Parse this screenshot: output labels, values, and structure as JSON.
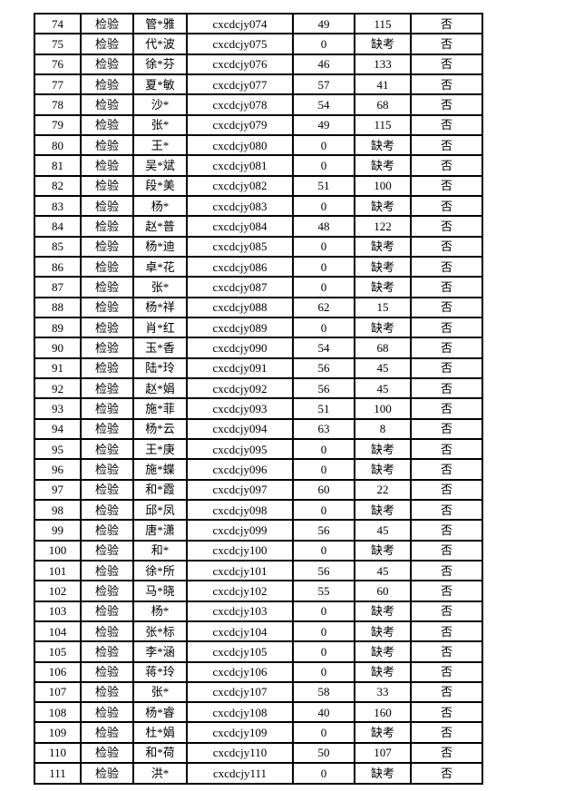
{
  "page": {
    "background_color": "#ffffff",
    "text_color": "#000000",
    "border_color": "#000000"
  },
  "table": {
    "column_keys": [
      "row_number",
      "category",
      "name",
      "account",
      "score",
      "rank_or_status",
      "flag"
    ],
    "absent_label": "缺考",
    "rows": [
      [
        "74",
        "检验",
        "管*雅",
        "cxcdcjy074",
        "49",
        "115",
        "否"
      ],
      [
        "75",
        "检验",
        "代*波",
        "cxcdcjy075",
        "0",
        "缺考",
        "否"
      ],
      [
        "76",
        "检验",
        "徐*芬",
        "cxcdcjy076",
        "46",
        "133",
        "否"
      ],
      [
        "77",
        "检验",
        "夏*敏",
        "cxcdcjy077",
        "57",
        "41",
        "否"
      ],
      [
        "78",
        "检验",
        "沙*",
        "cxcdcjy078",
        "54",
        "68",
        "否"
      ],
      [
        "79",
        "检验",
        "张*",
        "cxcdcjy079",
        "49",
        "115",
        "否"
      ],
      [
        "80",
        "检验",
        "王*",
        "cxcdcjy080",
        "0",
        "缺考",
        "否"
      ],
      [
        "81",
        "检验",
        "吴*斌",
        "cxcdcjy081",
        "0",
        "缺考",
        "否"
      ],
      [
        "82",
        "检验",
        "段*美",
        "cxcdcjy082",
        "51",
        "100",
        "否"
      ],
      [
        "83",
        "检验",
        "杨*",
        "cxcdcjy083",
        "0",
        "缺考",
        "否"
      ],
      [
        "84",
        "检验",
        "赵*普",
        "cxcdcjy084",
        "48",
        "122",
        "否"
      ],
      [
        "85",
        "检验",
        "杨*迪",
        "cxcdcjy085",
        "0",
        "缺考",
        "否"
      ],
      [
        "86",
        "检验",
        "卓*花",
        "cxcdcjy086",
        "0",
        "缺考",
        "否"
      ],
      [
        "87",
        "检验",
        "张*",
        "cxcdcjy087",
        "0",
        "缺考",
        "否"
      ],
      [
        "88",
        "检验",
        "杨*祥",
        "cxcdcjy088",
        "62",
        "15",
        "否"
      ],
      [
        "89",
        "检验",
        "肖*红",
        "cxcdcjy089",
        "0",
        "缺考",
        "否"
      ],
      [
        "90",
        "检验",
        "玉*香",
        "cxcdcjy090",
        "54",
        "68",
        "否"
      ],
      [
        "91",
        "检验",
        "陆*玲",
        "cxcdcjy091",
        "56",
        "45",
        "否"
      ],
      [
        "92",
        "检验",
        "赵*娟",
        "cxcdcjy092",
        "56",
        "45",
        "否"
      ],
      [
        "93",
        "检验",
        "施*菲",
        "cxcdcjy093",
        "51",
        "100",
        "否"
      ],
      [
        "94",
        "检验",
        "杨*云",
        "cxcdcjy094",
        "63",
        "8",
        "否"
      ],
      [
        "95",
        "检验",
        "王*庚",
        "cxcdcjy095",
        "0",
        "缺考",
        "否"
      ],
      [
        "96",
        "检验",
        "施*蝶",
        "cxcdcjy096",
        "0",
        "缺考",
        "否"
      ],
      [
        "97",
        "检验",
        "和*霞",
        "cxcdcjy097",
        "60",
        "22",
        "否"
      ],
      [
        "98",
        "检验",
        "邱*凤",
        "cxcdcjy098",
        "0",
        "缺考",
        "否"
      ],
      [
        "99",
        "检验",
        "唐*潇",
        "cxcdcjy099",
        "56",
        "45",
        "否"
      ],
      [
        "100",
        "检验",
        "和*",
        "cxcdcjy100",
        "0",
        "缺考",
        "否"
      ],
      [
        "101",
        "检验",
        "徐*所",
        "cxcdcjy101",
        "56",
        "45",
        "否"
      ],
      [
        "102",
        "检验",
        "马*晓",
        "cxcdcjy102",
        "55",
        "60",
        "否"
      ],
      [
        "103",
        "检验",
        "杨*",
        "cxcdcjy103",
        "0",
        "缺考",
        "否"
      ],
      [
        "104",
        "检验",
        "张*标",
        "cxcdcjy104",
        "0",
        "缺考",
        "否"
      ],
      [
        "105",
        "检验",
        "李*涵",
        "cxcdcjy105",
        "0",
        "缺考",
        "否"
      ],
      [
        "106",
        "检验",
        "蒋*玲",
        "cxcdcjy106",
        "0",
        "缺考",
        "否"
      ],
      [
        "107",
        "检验",
        "张*",
        "cxcdcjy107",
        "58",
        "33",
        "否"
      ],
      [
        "108",
        "检验",
        "杨*睿",
        "cxcdcjy108",
        "40",
        "160",
        "否"
      ],
      [
        "109",
        "检验",
        "杜*娟",
        "cxcdcjy109",
        "0",
        "缺考",
        "否"
      ],
      [
        "110",
        "检验",
        "和*荷",
        "cxcdcjy110",
        "50",
        "107",
        "否"
      ],
      [
        "111",
        "检验",
        "洪*",
        "cxcdcjy111",
        "0",
        "缺考",
        "否"
      ]
    ]
  }
}
